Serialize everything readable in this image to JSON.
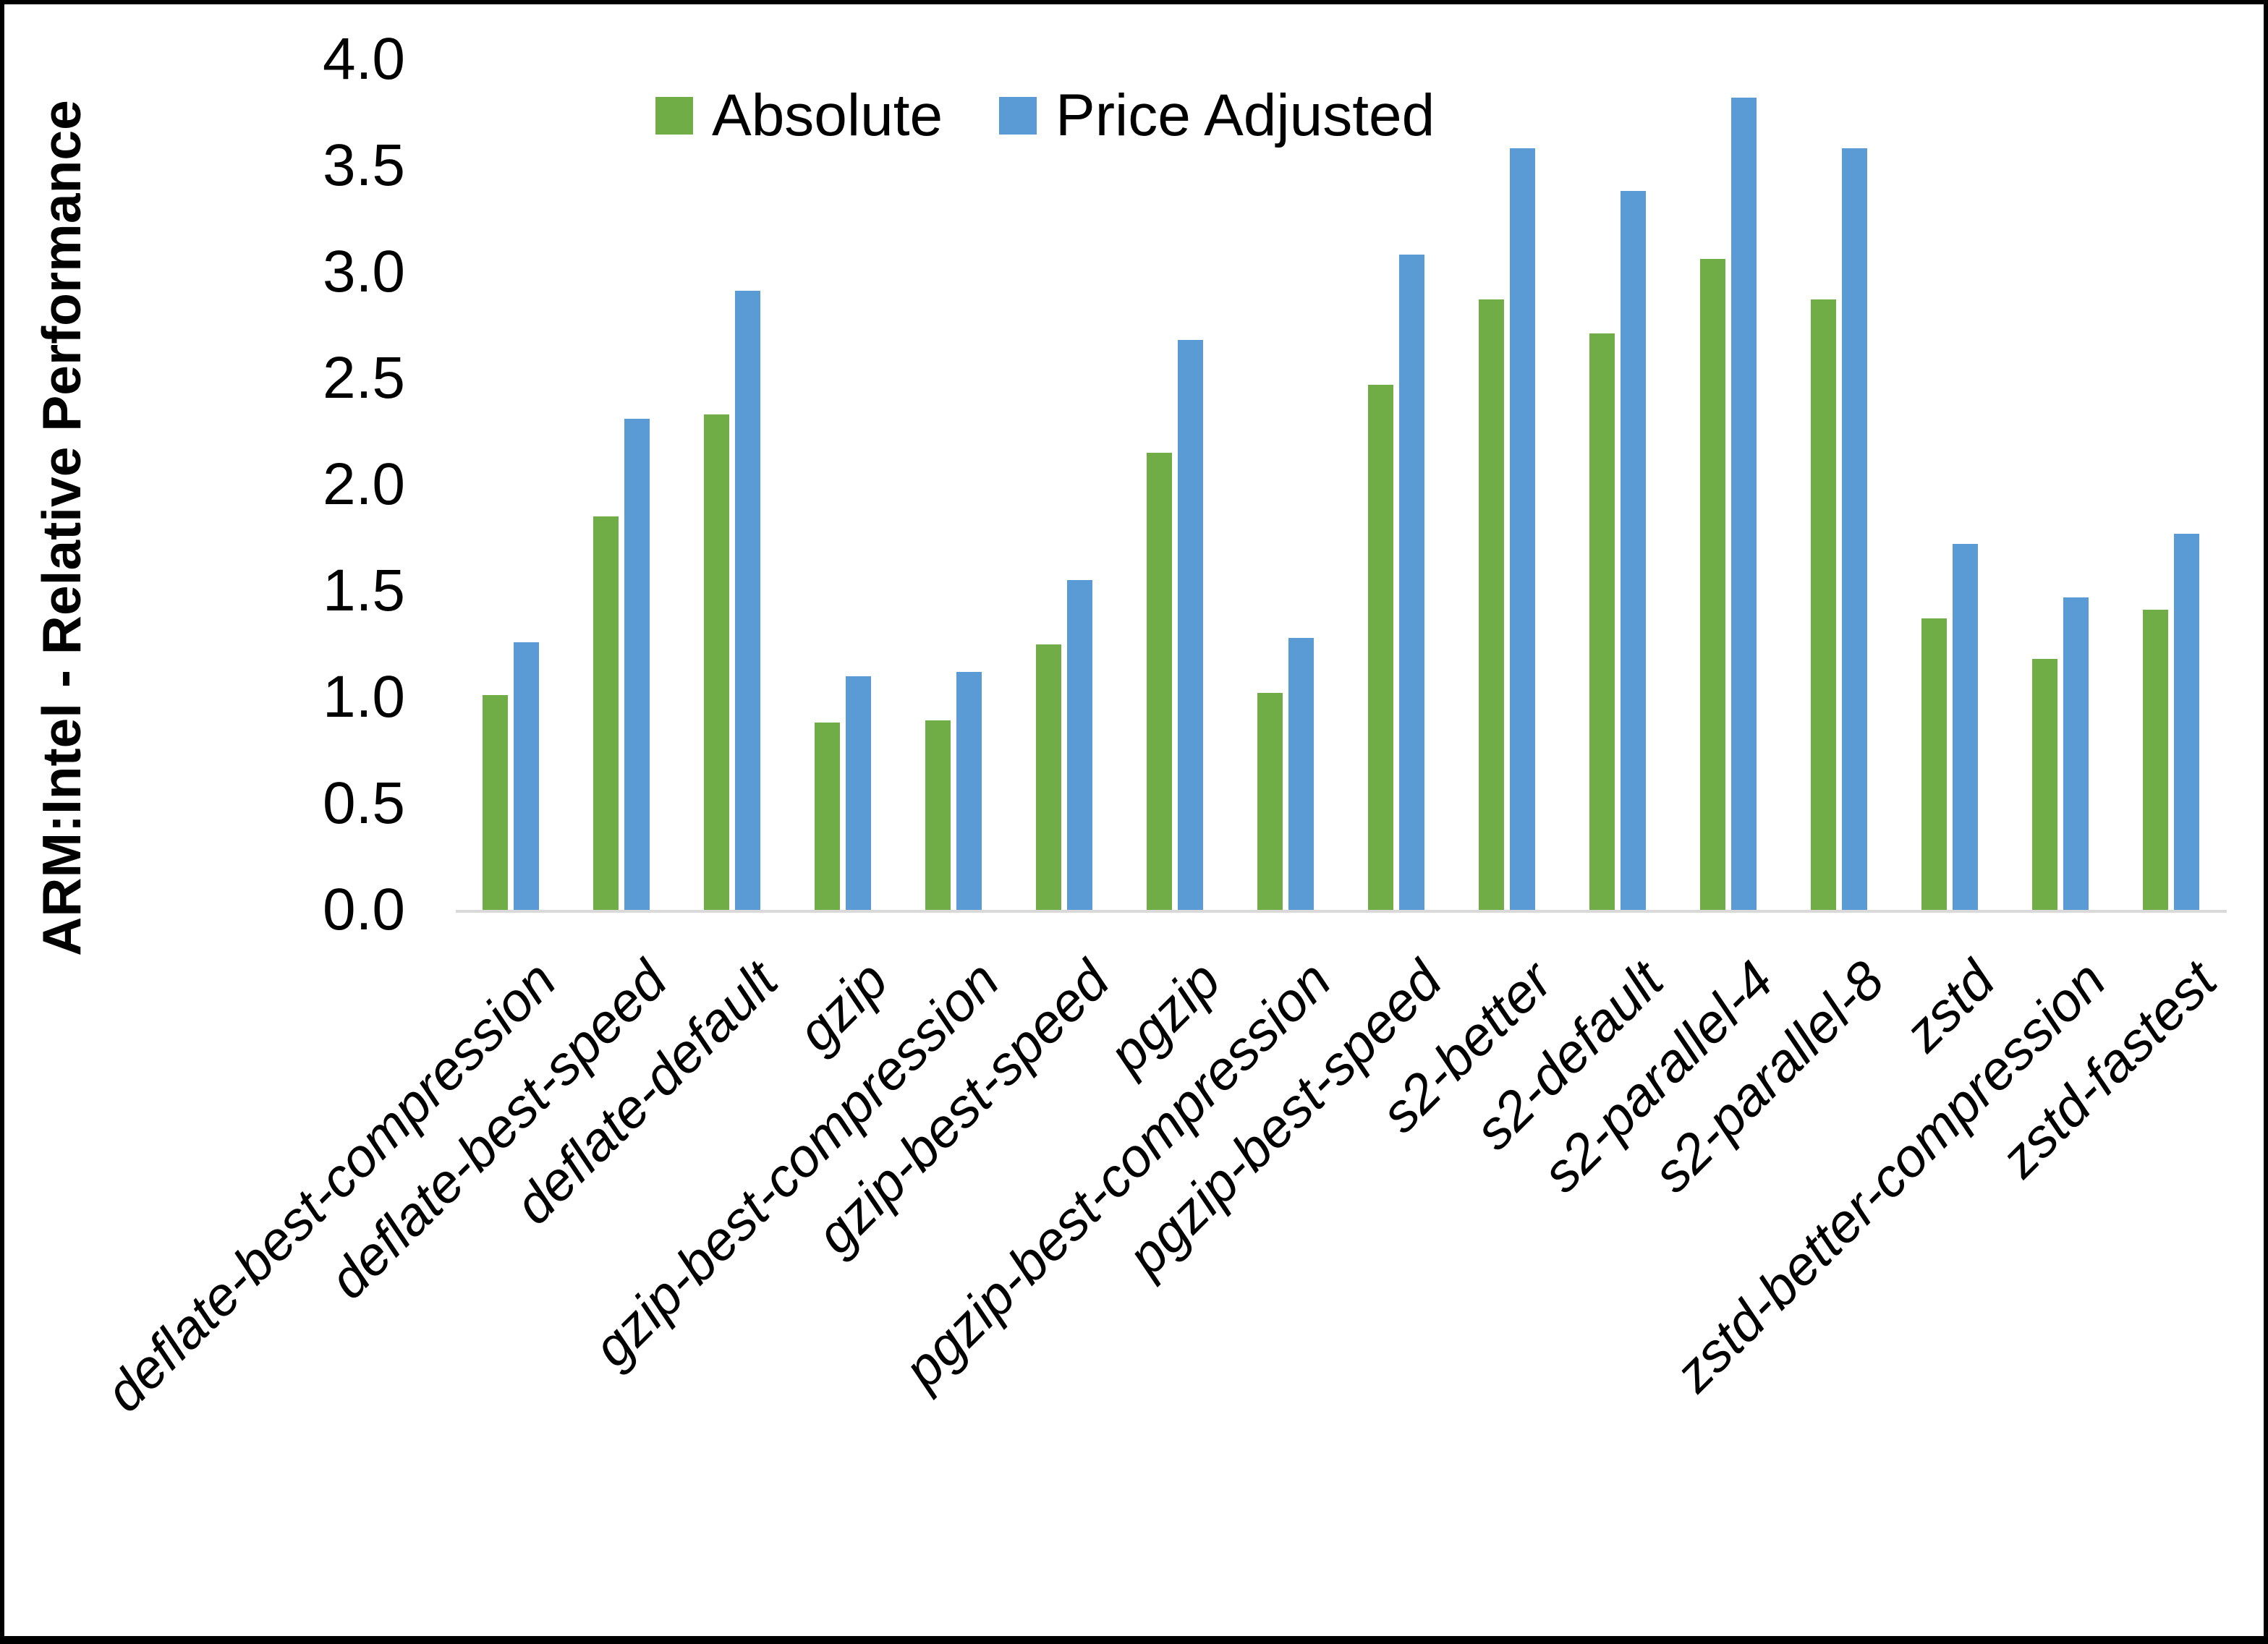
{
  "chart_data": {
    "type": "bar",
    "title": "",
    "xlabel": "",
    "ylabel": "ARM:Intel - Relative Performance",
    "ylim": [
      0.0,
      4.0
    ],
    "ytick_step": 0.5,
    "ytick_labels": [
      "0.0",
      "0.5",
      "1.0",
      "1.5",
      "2.0",
      "2.5",
      "3.0",
      "3.5",
      "4.0"
    ],
    "grid": "off",
    "legend_position": "top-center",
    "categories": [
      "deflate-best-compression",
      "deflate-best-speed",
      "deflate-default",
      "gzip",
      "gzip-best-compression",
      "gzip-best-speed",
      "pgzip",
      "pgzip-best-compression",
      "pgzip-best-speed",
      "s2-better",
      "s2-default",
      "s2-parallel-4",
      "s2-parallel-8",
      "zstd",
      "zstd-better-compression",
      "zstd-fastest"
    ],
    "series": [
      {
        "name": "Absolute",
        "color": "#70AD47",
        "values": [
          1.01,
          1.85,
          2.33,
          0.88,
          0.89,
          1.25,
          2.15,
          1.02,
          2.47,
          2.87,
          2.71,
          3.06,
          2.87,
          1.37,
          1.18,
          1.41
        ]
      },
      {
        "name": "Price Adjusted",
        "color": "#5B9BD5",
        "values": [
          1.26,
          2.31,
          2.91,
          1.1,
          1.12,
          1.55,
          2.68,
          1.28,
          3.08,
          3.58,
          3.38,
          3.82,
          3.58,
          1.72,
          1.47,
          1.77
        ]
      }
    ],
    "colors": {
      "absolute_green": "#70AD47",
      "price_adjusted_blue": "#5B9BD5",
      "axis_line_gray": "#d9d9d9",
      "text_black": "#000000",
      "frame_black": "#000000"
    }
  }
}
